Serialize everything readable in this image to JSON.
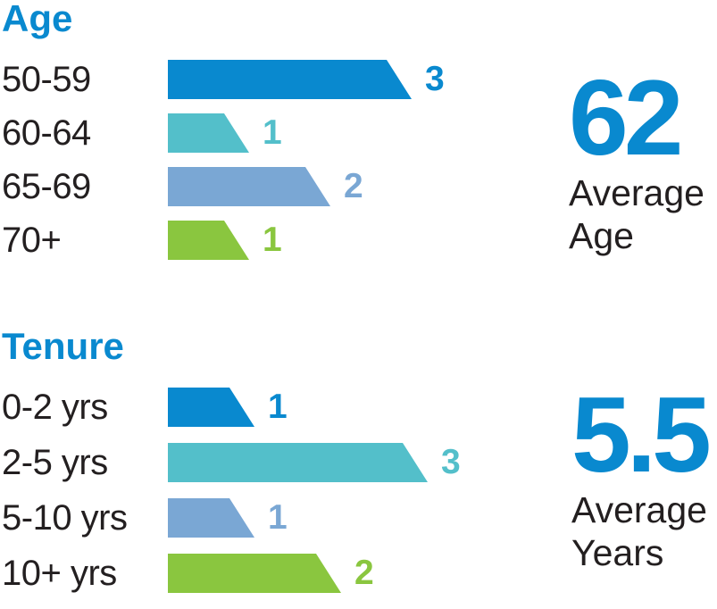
{
  "page": {
    "background": "#ffffff"
  },
  "palette": {
    "accent_blue": "#0989cf",
    "teal": "#53bfca",
    "steel_blue": "#7aa7d4",
    "green": "#8ac63f",
    "text_dark": "#231f20"
  },
  "chart_data": [
    {
      "type": "bar",
      "orientation": "horizontal",
      "title": "Age",
      "categories": [
        "50-59",
        "60-64",
        "65-69",
        "70+"
      ],
      "values": [
        3,
        1,
        2,
        1
      ],
      "data_labels": [
        "3",
        "1",
        "2",
        "1"
      ],
      "bar_colors": [
        "#0989cf",
        "#53bfca",
        "#7aa7d4",
        "#8ac63f"
      ],
      "xlim": [
        0,
        3
      ],
      "grid": false,
      "legend": false,
      "summary_stat": {
        "value": "62",
        "caption_lines": [
          "Average",
          "Age"
        ]
      }
    },
    {
      "type": "bar",
      "orientation": "horizontal",
      "title": "Tenure",
      "categories": [
        "0-2 yrs",
        "2-5 yrs",
        "5-10 yrs",
        "10+ yrs"
      ],
      "values": [
        1,
        3,
        1,
        2
      ],
      "data_labels": [
        "1",
        "3",
        "1",
        "2"
      ],
      "bar_colors": [
        "#0989cf",
        "#53bfca",
        "#7aa7d4",
        "#8ac63f"
      ],
      "xlim": [
        0,
        3
      ],
      "grid": false,
      "legend": false,
      "summary_stat": {
        "value": "5.5",
        "caption_lines": [
          "Average",
          "Years"
        ]
      }
    }
  ]
}
